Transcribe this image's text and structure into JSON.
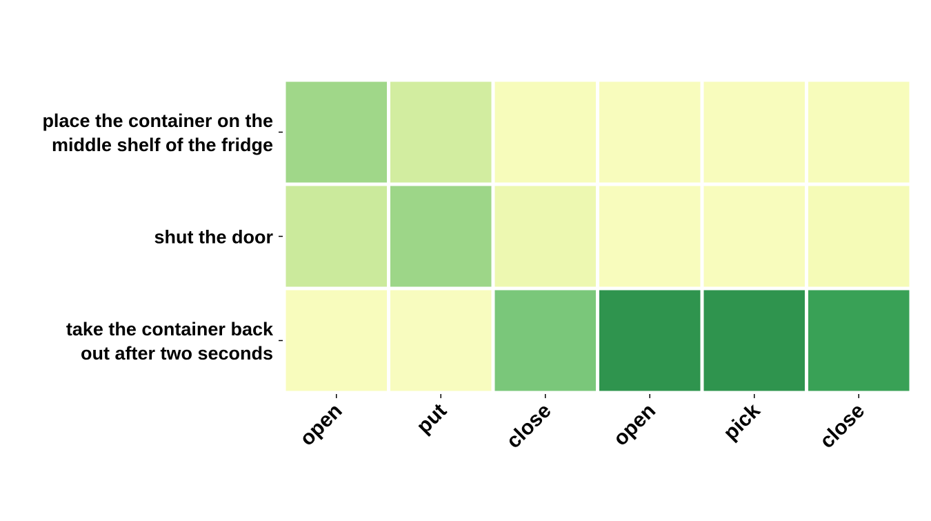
{
  "chart_data": {
    "type": "heatmap",
    "title": "",
    "xlabel": "",
    "ylabel": "",
    "x_categories": [
      "open",
      "put",
      "close",
      "open",
      "pick",
      "close"
    ],
    "y_categories": [
      [
        "place the container on the",
        "middle shelf of the fridge"
      ],
      [
        "shut the door"
      ],
      [
        "take the container back",
        "out after two seconds"
      ]
    ],
    "values": [
      [
        0.45,
        0.25,
        0.03,
        0.02,
        0.02,
        0.03
      ],
      [
        0.28,
        0.46,
        0.1,
        0.02,
        0.02,
        0.05
      ],
      [
        0.02,
        0.01,
        0.58,
        0.88,
        0.88,
        0.82
      ]
    ],
    "colormap": "YlGn",
    "colors": {
      "low": "#f7fcb9",
      "mid_low": "#d9f0a3",
      "mid": "#addd8e",
      "mid_high": "#78c679",
      "high_mid": "#41ab5d",
      "high": "#238443",
      "max": "#006837"
    },
    "value_range": [
      0,
      1
    ],
    "grid": false,
    "legend": "none"
  }
}
